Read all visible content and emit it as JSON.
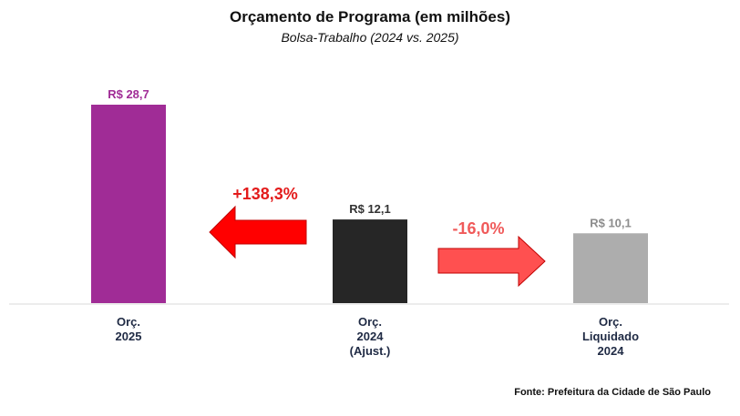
{
  "chart_data": {
    "type": "bar",
    "title": "Orçamento de Programa (em milhões)",
    "subtitle": "Bolsa-Trabalho (2024 vs. 2025)",
    "categories": [
      [
        "Orç.",
        "2025"
      ],
      [
        "Orç.",
        "2024",
        "(Ajust.)"
      ],
      [
        "Orç.",
        "Liquidado",
        "2024"
      ]
    ],
    "values": [
      28.7,
      12.1,
      10.1
    ],
    "data_labels": [
      "R$ 28,7",
      "R$ 12,1",
      "R$ 10,1"
    ],
    "colors": [
      "#a02c96",
      "#262626",
      "#adadad"
    ],
    "label_colors": [
      "#a02c96",
      "#333333",
      "#8c8c8c"
    ],
    "annotations": [
      {
        "text": "+138,3%",
        "direction": "left",
        "color": "#ff0000",
        "text_color": "#e31b1b"
      },
      {
        "text": "-16,0%",
        "direction": "right",
        "color": "#ff5050",
        "text_color": "#f05a5a"
      }
    ],
    "ylim": [
      0,
      28.7
    ],
    "grid": false,
    "source": "Fonte: Prefeitura da Cidade de São Paulo"
  }
}
